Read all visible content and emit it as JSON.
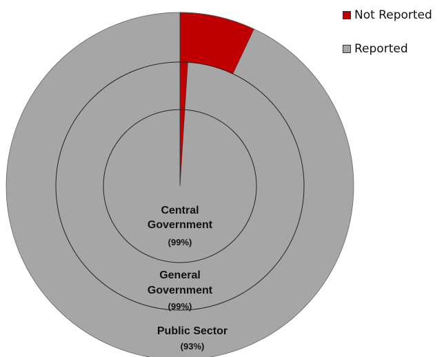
{
  "chart_data": {
    "type": "pie",
    "subtype": "nested-donut",
    "colors": {
      "not_reported": "#c00000",
      "reported": "#a6a6a6"
    },
    "legend": [
      {
        "label": "Not Reported",
        "color": "#c00000"
      },
      {
        "label": "Reported",
        "color": "#a6a6a6"
      }
    ],
    "legend_position": "top-right",
    "rings": [
      {
        "name_lines": [
          "Central",
          "Government"
        ],
        "pct_label": "(99%)",
        "reported_pct": 99,
        "not_reported_pct": 1
      },
      {
        "name_lines": [
          "General",
          "Government"
        ],
        "pct_label": "(99%)",
        "reported_pct": 99,
        "not_reported_pct": 1
      },
      {
        "name_lines": [
          "Public Sector"
        ],
        "pct_label": "(93%)",
        "reported_pct": 93,
        "not_reported_pct": 7
      }
    ]
  }
}
